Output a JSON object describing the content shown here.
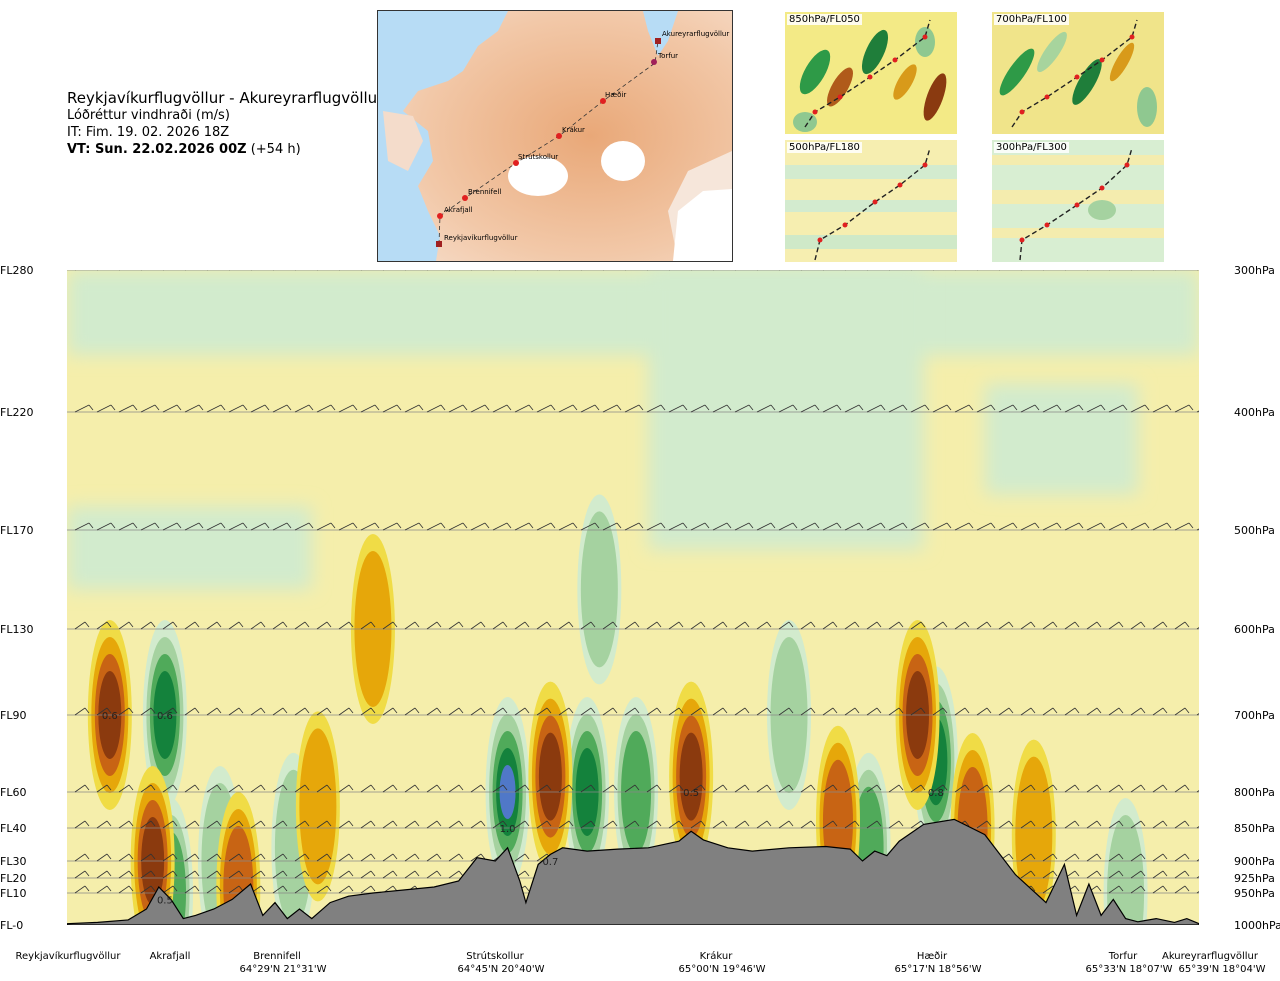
{
  "header": {
    "route": "Reykjavíkurflugvöllur - Akureyrarflugvöllur",
    "parameter": "Lóðréttur vindhraði (m/s)",
    "issue_time": "IT: Fim. 19. 02. 2026 18Z",
    "valid_time_bold": "VT: Sun. 22.02.2026 00Z",
    "valid_time_lead": "(+54 h)"
  },
  "map": {
    "waypoints": [
      "Reykjavíkurflugvöllur",
      "Akrafjall",
      "Brennifell",
      "Strútskollur",
      "Krákur",
      "Hæðir",
      "Torfur",
      "Akureyrarflugvöllur"
    ]
  },
  "thumbnails": [
    {
      "label": "850hPa/FL050"
    },
    {
      "label": "700hPa/FL100"
    },
    {
      "label": "500hPa/FL180"
    },
    {
      "label": "300hPa/FL300"
    }
  ],
  "colors": {
    "strong_down": "#8b3a0e",
    "down": "#c86414",
    "weak_down": "#e6a70a",
    "slight_down": "#f0dc46",
    "neutral_down": "#f6eeaa",
    "neutral_up": "#d2ebcd",
    "slight_up": "#a5d2a0",
    "up": "#50aa5a",
    "strong_up": "#14823c",
    "very_strong_up": "#5078c8",
    "terrain": "#808080"
  },
  "chart_data": {
    "type": "heatmap",
    "title": "",
    "y_left_flight_levels": [
      "FL280",
      "FL220",
      "FL170",
      "FL130",
      "FL90",
      "FL60",
      "FL40",
      "FL30",
      "FL20",
      "FL10",
      "FL-0"
    ],
    "y_right_pressure": [
      "300hPa",
      "400hPa",
      "500hPa",
      "600hPa",
      "700hPa",
      "800hPa",
      "850hPa",
      "900hPa",
      "925hPa",
      "950hPa",
      "1000hPa"
    ],
    "stations": [
      {
        "name": "Reykjavíkurflugvöllur",
        "coord": ""
      },
      {
        "name": "Akrafjall",
        "coord": ""
      },
      {
        "name": "Brennifell",
        "coord": "64°29'N 21°31'W"
      },
      {
        "name": "Strútskollur",
        "coord": "64°45'N 20°40'W"
      },
      {
        "name": "Krákur",
        "coord": "65°00'N 19°46'W"
      },
      {
        "name": "Hæðir",
        "coord": "65°17'N 18°56'W"
      },
      {
        "name": "Torfur",
        "coord": "65°33'N 18°07'W"
      },
      {
        "name": "Akureyrarflugvöllur",
        "coord": "65°39'N 18°04'W"
      }
    ],
    "annotations": [
      {
        "text": "0.6",
        "km": 7,
        "hpa": 700
      },
      {
        "text": "0.6",
        "km": 16,
        "hpa": 700
      },
      {
        "text": "0.5",
        "km": 16,
        "hpa": 960
      },
      {
        "text": "1.0",
        "km": 72,
        "hpa": 850
      },
      {
        "text": "0.7",
        "km": 79,
        "hpa": 900
      },
      {
        "text": "0.5",
        "km": 102,
        "hpa": 800
      },
      {
        "text": "0.8",
        "km": 142,
        "hpa": 800
      }
    ],
    "updraft_cells": [
      {
        "km": 16,
        "hpa": 700,
        "strength": 3
      },
      {
        "km": 17,
        "hpa": 950,
        "strength": 2
      },
      {
        "km": 25,
        "hpa": 900,
        "strength": 1
      },
      {
        "km": 37,
        "hpa": 880,
        "strength": 1
      },
      {
        "km": 72,
        "hpa": 800,
        "strength": 4
      },
      {
        "km": 85,
        "hpa": 800,
        "strength": 3
      },
      {
        "km": 93,
        "hpa": 800,
        "strength": 2
      },
      {
        "km": 118,
        "hpa": 700,
        "strength": 1
      },
      {
        "km": 131,
        "hpa": 880,
        "strength": 2
      },
      {
        "km": 142,
        "hpa": 760,
        "strength": 3
      },
      {
        "km": 173,
        "hpa": 950,
        "strength": 1
      },
      {
        "km": 87,
        "hpa": 560,
        "strength": 1
      }
    ],
    "downdraft_cells": [
      {
        "km": 7,
        "hpa": 700,
        "strength": 4
      },
      {
        "km": 14,
        "hpa": 900,
        "strength": 3
      },
      {
        "km": 28,
        "hpa": 940,
        "strength": 2
      },
      {
        "km": 41,
        "hpa": 820,
        "strength": 1
      },
      {
        "km": 79,
        "hpa": 780,
        "strength": 4
      },
      {
        "km": 102,
        "hpa": 780,
        "strength": 3
      },
      {
        "km": 126,
        "hpa": 840,
        "strength": 2
      },
      {
        "km": 139,
        "hpa": 700,
        "strength": 3
      },
      {
        "km": 148,
        "hpa": 850,
        "strength": 2
      },
      {
        "km": 158,
        "hpa": 860,
        "strength": 1
      },
      {
        "km": 50,
        "hpa": 600,
        "strength": 1
      }
    ],
    "terrain_profile": {
      "km": [
        0,
        5,
        10,
        13,
        15,
        17,
        19,
        21,
        24,
        27,
        30,
        32,
        34,
        36,
        38,
        40,
        43,
        46,
        50,
        55,
        60,
        64,
        67,
        70,
        72,
        74,
        75,
        77,
        79,
        81,
        85,
        90,
        95,
        100,
        102,
        104,
        108,
        112,
        118,
        124,
        128,
        130,
        132,
        134,
        136,
        140,
        145,
        150,
        155,
        160,
        163,
        165,
        167,
        169,
        171,
        173,
        175,
        178,
        181,
        183,
        185
      ],
      "hpa": [
        998,
        996,
        992,
        975,
        940,
        960,
        990,
        985,
        975,
        960,
        935,
        985,
        965,
        990,
        975,
        990,
        965,
        955,
        950,
        945,
        940,
        930,
        895,
        900,
        880,
        930,
        965,
        905,
        890,
        880,
        885,
        882,
        880,
        870,
        855,
        868,
        880,
        885,
        880,
        878,
        882,
        900,
        885,
        892,
        870,
        845,
        838,
        860,
        920,
        965,
        905,
        985,
        935,
        985,
        960,
        990,
        995,
        990,
        996,
        990,
        998
      ]
    },
    "x_range_km": [
      0,
      185
    ],
    "y_range_hpa": [
      300,
      1000
    ],
    "contour_levels_ms": [
      -1.0,
      -0.6,
      -0.4,
      -0.2,
      -0.05,
      0,
      0.05,
      0.2,
      0.4,
      0.6,
      1.0
    ],
    "wind_barb_levels_hpa": [
      300,
      400,
      500,
      600,
      700,
      800,
      850,
      900,
      925,
      950
    ],
    "grid": true
  }
}
